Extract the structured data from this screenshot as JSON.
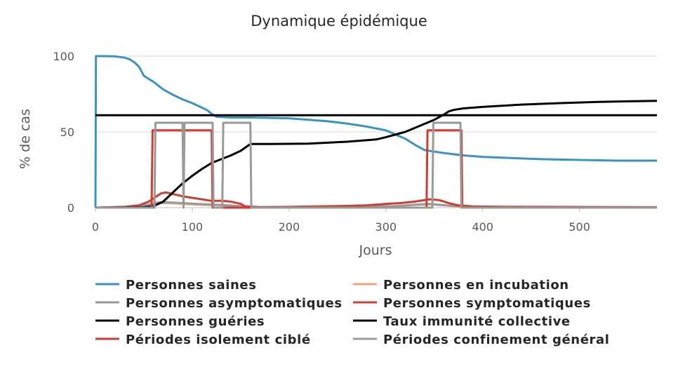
{
  "chart_data": {
    "type": "line",
    "title": "Dynamique épidémique",
    "xlabel": "Jours",
    "ylabel": "% de cas",
    "xlim": [
      0,
      580
    ],
    "ylim": [
      0,
      100
    ],
    "x_ticks": [
      0,
      100,
      200,
      300,
      400,
      500
    ],
    "y_ticks": [
      0,
      50,
      100
    ],
    "grid": "horizontal",
    "legend_position": "bottom",
    "series": [
      {
        "name": "Personnes saines",
        "color": "#3a93c3",
        "points": [
          [
            0,
            0
          ],
          [
            0.5,
            100
          ],
          [
            10,
            100
          ],
          [
            20,
            99.8
          ],
          [
            30,
            99
          ],
          [
            35,
            98
          ],
          [
            40,
            96
          ],
          [
            45,
            93
          ],
          [
            50,
            87
          ],
          [
            60,
            83
          ],
          [
            70,
            78
          ],
          [
            80,
            74.5
          ],
          [
            90,
            71.5
          ],
          [
            100,
            69
          ],
          [
            110,
            66
          ],
          [
            115,
            64.5
          ],
          [
            120,
            62
          ],
          [
            125,
            60
          ],
          [
            140,
            59.5
          ],
          [
            160,
            59.5
          ],
          [
            200,
            59
          ],
          [
            220,
            58
          ],
          [
            240,
            57
          ],
          [
            260,
            55.5
          ],
          [
            280,
            53.5
          ],
          [
            300,
            51
          ],
          [
            320,
            45.5
          ],
          [
            330,
            41.5
          ],
          [
            340,
            38
          ],
          [
            350,
            37
          ],
          [
            360,
            36
          ],
          [
            380,
            34.5
          ],
          [
            400,
            33.5
          ],
          [
            420,
            33
          ],
          [
            460,
            32
          ],
          [
            500,
            31.5
          ],
          [
            540,
            31
          ],
          [
            580,
            31
          ]
        ]
      },
      {
        "name": "Personnes en incubation",
        "color": "#f4a582",
        "points": [
          [
            0,
            0
          ],
          [
            40,
            0.5
          ],
          [
            55,
            2
          ],
          [
            65,
            3
          ],
          [
            75,
            3
          ],
          [
            90,
            2.5
          ],
          [
            110,
            1.8
          ],
          [
            130,
            1.5
          ],
          [
            150,
            0.8
          ],
          [
            170,
            0.3
          ],
          [
            250,
            0.5
          ],
          [
            310,
            1
          ],
          [
            330,
            1.8
          ],
          [
            345,
            2.2
          ],
          [
            360,
            1.5
          ],
          [
            380,
            0.6
          ],
          [
            420,
            0.3
          ],
          [
            580,
            0.2
          ]
        ]
      },
      {
        "name": "Personnes asymptomatiques",
        "color": "#999999",
        "points": [
          [
            0,
            0
          ],
          [
            40,
            0.5
          ],
          [
            55,
            2
          ],
          [
            65,
            3.5
          ],
          [
            75,
            3.5
          ],
          [
            90,
            3
          ],
          [
            110,
            2.3
          ],
          [
            130,
            1.8
          ],
          [
            150,
            1
          ],
          [
            170,
            0.4
          ],
          [
            250,
            0.5
          ],
          [
            310,
            1
          ],
          [
            330,
            2
          ],
          [
            345,
            2.5
          ],
          [
            360,
            1.6
          ],
          [
            380,
            0.7
          ],
          [
            420,
            0.3
          ],
          [
            580,
            0.2
          ]
        ]
      },
      {
        "name": "Personnes symptomatiques",
        "color": "#d03c2f",
        "points": [
          [
            0,
            0
          ],
          [
            30,
            0.5
          ],
          [
            45,
            1.5
          ],
          [
            55,
            4
          ],
          [
            62,
            7
          ],
          [
            68,
            9.5
          ],
          [
            73,
            10
          ],
          [
            80,
            9
          ],
          [
            90,
            7.5
          ],
          [
            100,
            6.5
          ],
          [
            110,
            5.5
          ],
          [
            120,
            4.5
          ],
          [
            130,
            4.5
          ],
          [
            140,
            4
          ],
          [
            150,
            2.5
          ],
          [
            155,
            0.8
          ],
          [
            170,
            0.3
          ],
          [
            200,
            0.5
          ],
          [
            250,
            1
          ],
          [
            280,
            1.5
          ],
          [
            300,
            2.5
          ],
          [
            315,
            3
          ],
          [
            330,
            4
          ],
          [
            345,
            5.5
          ],
          [
            355,
            5
          ],
          [
            365,
            3
          ],
          [
            375,
            1.5
          ],
          [
            390,
            0.8
          ],
          [
            420,
            0.6
          ],
          [
            580,
            0.3
          ]
        ]
      },
      {
        "name": "Personnes guéries",
        "color": "#000000",
        "points": [
          [
            0,
            0
          ],
          [
            50,
            0.3
          ],
          [
            60,
            1
          ],
          [
            70,
            4
          ],
          [
            80,
            10
          ],
          [
            90,
            16
          ],
          [
            100,
            21
          ],
          [
            110,
            25.5
          ],
          [
            120,
            29.5
          ],
          [
            130,
            32
          ],
          [
            140,
            34.5
          ],
          [
            150,
            37.5
          ],
          [
            160,
            42
          ],
          [
            180,
            42
          ],
          [
            220,
            42.2
          ],
          [
            260,
            43.5
          ],
          [
            290,
            45
          ],
          [
            300,
            46.5
          ],
          [
            320,
            50
          ],
          [
            335,
            54
          ],
          [
            350,
            58
          ],
          [
            360,
            61.5
          ],
          [
            365,
            63.5
          ],
          [
            370,
            64.5
          ],
          [
            380,
            65.5
          ],
          [
            400,
            66.5
          ],
          [
            440,
            68
          ],
          [
            480,
            69
          ],
          [
            520,
            69.8
          ],
          [
            580,
            70.5
          ]
        ]
      },
      {
        "name": "Taux immunité collective",
        "color": "#000000",
        "points": [
          [
            0,
            61
          ],
          [
            580,
            61
          ]
        ]
      },
      {
        "name": "Périodes isolement ciblé",
        "color": "#d03c2f",
        "points": [
          [
            0,
            0
          ],
          [
            58,
            0
          ],
          [
            59,
            51
          ],
          [
            120,
            51
          ],
          [
            121,
            0
          ],
          [
            342,
            0
          ],
          [
            343,
            51
          ],
          [
            378,
            51
          ],
          [
            379,
            0
          ],
          [
            580,
            0
          ]
        ]
      },
      {
        "name": "Périodes confinement général",
        "color": "#999999",
        "points": [
          [
            0,
            0
          ],
          [
            61,
            0
          ],
          [
            62,
            56
          ],
          [
            90,
            56
          ],
          [
            91,
            0
          ],
          [
            92,
            56
          ],
          [
            121,
            56
          ],
          [
            122,
            0
          ],
          [
            131,
            0
          ],
          [
            132,
            56
          ],
          [
            160,
            56
          ],
          [
            161,
            0
          ],
          [
            348,
            0
          ],
          [
            349,
            56
          ],
          [
            377,
            56
          ],
          [
            378,
            0
          ],
          [
            580,
            0
          ]
        ]
      }
    ]
  }
}
